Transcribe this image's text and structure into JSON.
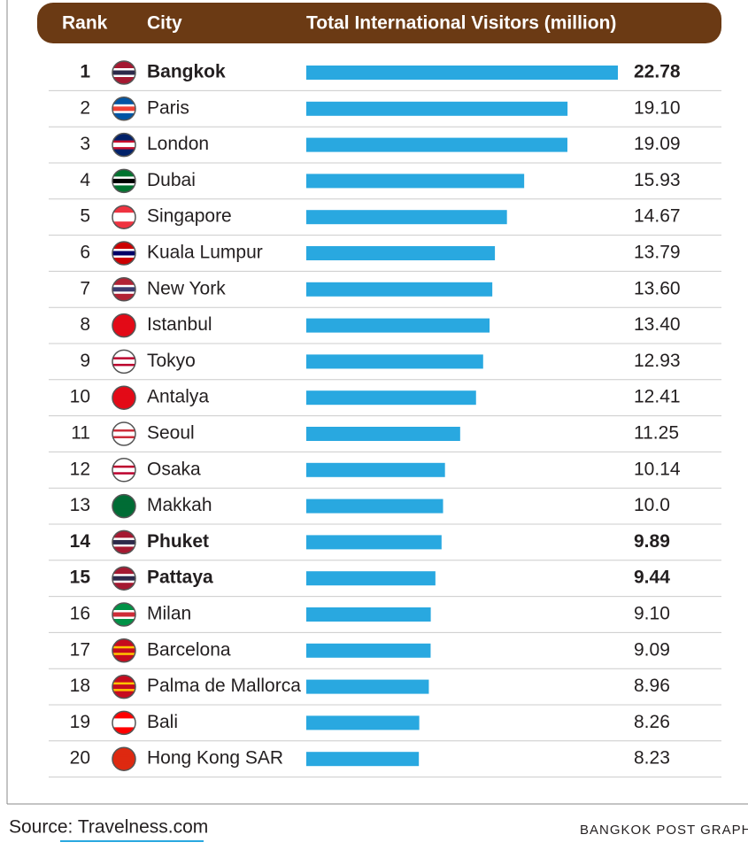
{
  "chart_data": {
    "type": "bar",
    "columns": [
      "Rank",
      "City",
      "Total International Visitors (million)"
    ],
    "ranks": [
      1,
      2,
      3,
      4,
      5,
      6,
      7,
      8,
      9,
      10,
      11,
      12,
      13,
      14,
      15,
      16,
      17,
      18,
      19,
      20
    ],
    "categories": [
      "Bangkok",
      "Paris",
      "London",
      "Dubai",
      "Singapore",
      "Kuala Lumpur",
      "New York",
      "Istanbul",
      "Tokyo",
      "Antalya",
      "Seoul",
      "Osaka",
      "Makkah",
      "Phuket",
      "Pattaya",
      "Milan",
      "Barcelona",
      "Palma de Mallorca",
      "Bali",
      "Hong Kong SAR"
    ],
    "values": [
      22.78,
      19.1,
      19.09,
      15.93,
      14.67,
      13.79,
      13.6,
      13.4,
      12.93,
      12.41,
      11.25,
      10.14,
      10.0,
      9.89,
      9.44,
      9.1,
      9.09,
      8.96,
      8.26,
      8.23
    ],
    "value_labels": [
      "22.78",
      "19.10",
      "19.09",
      "15.93",
      "14.67",
      "13.79",
      "13.60",
      "13.40",
      "12.93",
      "12.41",
      "11.25",
      "10.14",
      "10.0",
      "9.89",
      "9.44",
      "9.10",
      "9.09",
      "8.96",
      "8.26",
      "8.23"
    ],
    "bold": [
      true,
      false,
      false,
      false,
      false,
      false,
      false,
      false,
      false,
      false,
      false,
      false,
      false,
      true,
      true,
      false,
      false,
      false,
      false,
      false
    ],
    "color": "#29a8e0",
    "source": "Source: Travelness.com",
    "credit": "BANGKOK POST GRAPHI"
  }
}
